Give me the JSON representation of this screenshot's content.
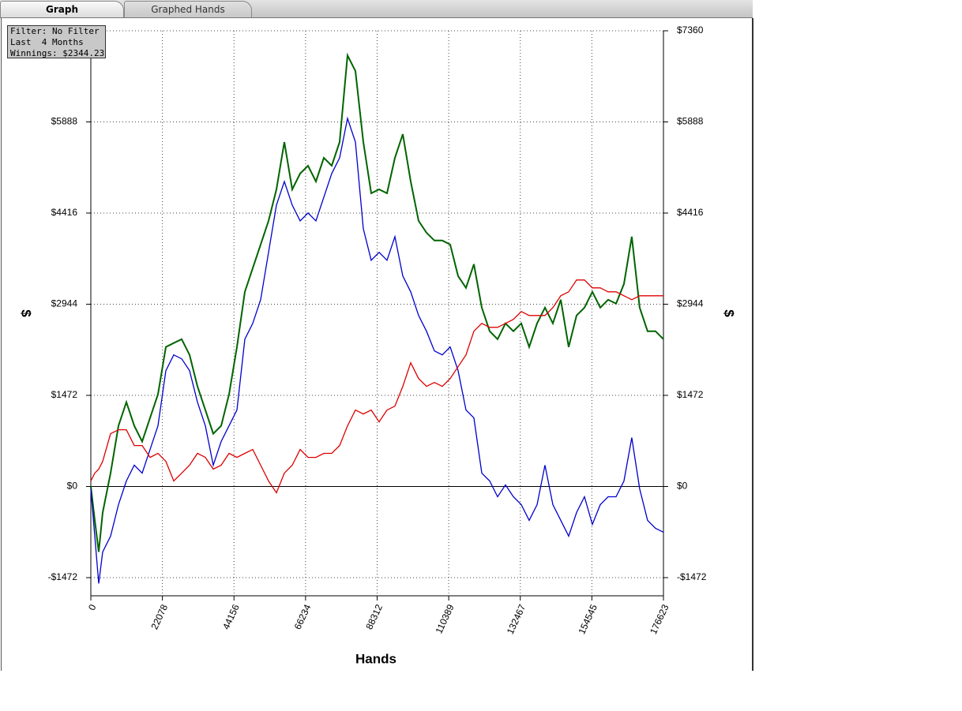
{
  "tabs": [
    "Graph",
    "Graphed Hands"
  ],
  "filter_box": [
    "Filter: No Filter",
    "Last  4 Months",
    "Winnings: $2344.23"
  ],
  "chart_data": {
    "type": "line",
    "x_label": "Hands",
    "y_label": "$",
    "x": [
      0,
      1218,
      2436,
      3654,
      6090,
      8526,
      10962,
      13398,
      15834,
      18270,
      20706,
      23142,
      25578,
      28014,
      30450,
      32886,
      35322,
      37758,
      40194,
      42630,
      45066,
      47502,
      49938,
      52374,
      54810,
      57246,
      59682,
      62118,
      64554,
      66990,
      69426,
      71862,
      74298,
      76734,
      79170,
      81606,
      84042,
      86478,
      88914,
      91350,
      93786,
      96222,
      98658,
      101094,
      103530,
      105966,
      108402,
      110838,
      113274,
      115710,
      118146,
      120582,
      123018,
      125454,
      127890,
      130326,
      132762,
      135198,
      137634,
      140070,
      142506,
      144942,
      147378,
      149814,
      152250,
      154686,
      157122,
      159558,
      161994,
      164430,
      166866,
      169302,
      171738,
      174174,
      176623
    ],
    "series": [
      {
        "color": "#006400",
        "values": [
          0,
          -547,
          -1057,
          -420,
          216,
          980,
          1362,
          980,
          726,
          1108,
          1489,
          2253,
          2317,
          2380,
          2126,
          1617,
          1235,
          853,
          980,
          1489,
          2253,
          3144,
          3526,
          3908,
          4290,
          4799,
          5563,
          4799,
          5054,
          5181,
          4926,
          5308,
          5181,
          5563,
          6963,
          6709,
          5563,
          4736,
          4799,
          4736,
          5308,
          5690,
          4926,
          4290,
          4099,
          3972,
          3972,
          3908,
          3399,
          3208,
          3590,
          2889,
          2508,
          2380,
          2635,
          2508,
          2635,
          2253,
          2635,
          2889,
          2635,
          3017,
          2253,
          2762,
          2889,
          3144,
          2889,
          3017,
          2953,
          3272,
          4035,
          2889,
          2508,
          2508,
          2380
        ]
      },
      {
        "color": "#0000cc",
        "values": [
          -38,
          -802,
          -1566,
          -1057,
          -802,
          -293,
          89,
          344,
          216,
          598,
          980,
          1871,
          2126,
          2062,
          1871,
          1362,
          980,
          344,
          726,
          980,
          1235,
          2380,
          2635,
          3017,
          3781,
          4545,
          4926,
          4545,
          4290,
          4417,
          4290,
          4672,
          5054,
          5308,
          5945,
          5563,
          4163,
          3654,
          3781,
          3654,
          4035,
          3399,
          3144,
          2762,
          2508,
          2190,
          2126,
          2253,
          1871,
          1235,
          1108,
          216,
          89,
          -165,
          25,
          -165,
          -293,
          -547,
          -293,
          344,
          -293,
          -547,
          -802,
          -420,
          -165,
          -611,
          -293,
          -165,
          -165,
          89,
          789,
          -38,
          -547,
          -675,
          -738
        ]
      },
      {
        "color": "#dd0000",
        "values": [
          89,
          216,
          280,
          407,
          853,
          917,
          917,
          662,
          662,
          471,
          535,
          407,
          89,
          216,
          344,
          535,
          471,
          280,
          344,
          535,
          471,
          535,
          598,
          344,
          89,
          -102,
          216,
          344,
          598,
          471,
          471,
          535,
          535,
          662,
          980,
          1235,
          1171,
          1235,
          1044,
          1235,
          1298,
          1617,
          1999,
          1744,
          1617,
          1680,
          1617,
          1744,
          1935,
          2126,
          2508,
          2635,
          2571,
          2571,
          2635,
          2699,
          2826,
          2762,
          2762,
          2762,
          2889,
          3081,
          3144,
          3335,
          3335,
          3208,
          3208,
          3144,
          3144,
          3081,
          3017,
          3081,
          3081,
          3081,
          3081
        ]
      }
    ],
    "xlim": [
      0,
      176623
    ],
    "xticks": [
      0,
      22078,
      44156,
      66234,
      88312,
      110389,
      132467,
      154545,
      176623
    ],
    "ylim": [
      -1765,
      7360
    ],
    "yticks": [
      {
        "value": 7360,
        "label": "$7360"
      },
      {
        "value": 5888,
        "label": "$5888"
      },
      {
        "value": 4416,
        "label": "$4416"
      },
      {
        "value": 2944,
        "label": "$2944"
      },
      {
        "value": 1472,
        "label": "$1472"
      },
      {
        "value": 0,
        "label": "$0"
      },
      {
        "value": -1472,
        "label": "-$1472"
      }
    ],
    "grid": true
  }
}
